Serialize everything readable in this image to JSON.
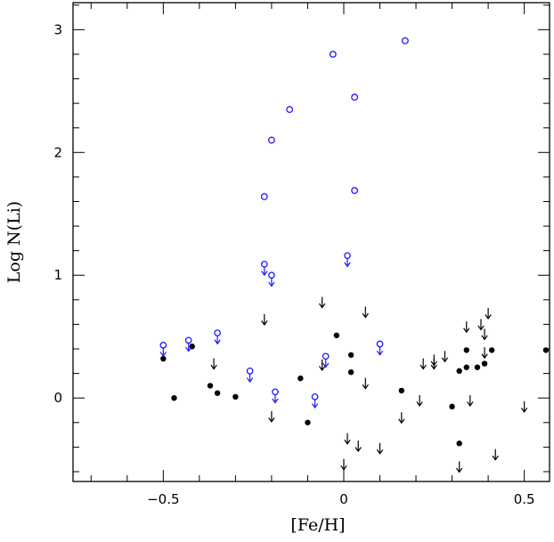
{
  "chart_data": {
    "type": "scatter",
    "title": "",
    "xlabel": "[Fe/H]",
    "ylabel": "Log N(Li)",
    "xlim": [
      -0.75,
      0.57
    ],
    "ylim": [
      -0.68,
      3.22
    ],
    "xticks_major": [
      -0.5,
      0,
      0.5
    ],
    "xticks_major_labels": [
      "−0.5",
      "0",
      "0.5"
    ],
    "xticks_minor_step": 0.1,
    "yticks_major": [
      0,
      1,
      2,
      3
    ],
    "yticks_major_labels": [
      "0",
      "1",
      "2",
      "3"
    ],
    "yticks_minor_step": 0.2,
    "grid": false,
    "legend": "none",
    "colors": {
      "black": "#000000",
      "blue": "#1a1aff"
    },
    "series": [
      {
        "marker": "filled-circle",
        "color": "#000000",
        "points": [
          [
            -0.5,
            0.32
          ],
          [
            -0.47,
            0.0
          ],
          [
            -0.42,
            0.42
          ],
          [
            -0.37,
            0.1
          ],
          [
            -0.35,
            0.04
          ],
          [
            -0.3,
            0.01
          ],
          [
            -0.12,
            0.16
          ],
          [
            -0.1,
            -0.2
          ],
          [
            -0.02,
            0.51
          ],
          [
            0.02,
            0.35
          ],
          [
            0.02,
            0.21
          ],
          [
            0.16,
            0.06
          ],
          [
            0.3,
            -0.07
          ],
          [
            0.32,
            0.22
          ],
          [
            0.32,
            -0.37
          ],
          [
            0.34,
            0.39
          ],
          [
            0.34,
            0.25
          ],
          [
            0.37,
            0.25
          ],
          [
            0.39,
            0.28
          ],
          [
            0.41,
            0.39
          ],
          [
            0.56,
            0.39
          ]
        ]
      },
      {
        "marker": "upper-limit-arrow",
        "color": "#000000",
        "points": [
          [
            -0.36,
            0.28
          ],
          [
            -0.22,
            0.64
          ],
          [
            -0.2,
            -0.15
          ],
          [
            -0.06,
            0.27
          ],
          [
            -0.06,
            0.78
          ],
          [
            0.01,
            -0.33
          ],
          [
            0.0,
            -0.54
          ],
          [
            0.04,
            -0.39
          ],
          [
            0.06,
            0.7
          ],
          [
            0.06,
            0.12
          ],
          [
            0.1,
            -0.41
          ],
          [
            0.16,
            -0.16
          ],
          [
            0.21,
            -0.02
          ],
          [
            0.22,
            0.28
          ],
          [
            0.25,
            0.31
          ],
          [
            0.25,
            0.28
          ],
          [
            0.28,
            0.34
          ],
          [
            0.34,
            0.58
          ],
          [
            0.35,
            -0.02
          ],
          [
            0.38,
            0.6
          ],
          [
            0.39,
            0.52
          ],
          [
            0.39,
            0.37
          ],
          [
            0.4,
            0.69
          ],
          [
            0.42,
            -0.46
          ],
          [
            0.32,
            -0.56
          ],
          [
            0.5,
            -0.07
          ]
        ]
      },
      {
        "marker": "open-circle",
        "color": "#1a1aff",
        "points": [
          [
            -0.03,
            2.8
          ],
          [
            0.17,
            2.91
          ],
          [
            0.03,
            2.45
          ],
          [
            -0.15,
            2.35
          ],
          [
            -0.2,
            2.1
          ],
          [
            -0.22,
            1.64
          ],
          [
            0.03,
            1.69
          ]
        ]
      },
      {
        "marker": "open-circle-upper-limit",
        "color": "#1a1aff",
        "points": [
          [
            -0.5,
            0.43
          ],
          [
            -0.43,
            0.47
          ],
          [
            -0.35,
            0.53
          ],
          [
            -0.26,
            0.22
          ],
          [
            -0.22,
            1.09
          ],
          [
            -0.2,
            1.0
          ],
          [
            -0.19,
            0.05
          ],
          [
            -0.08,
            0.01
          ],
          [
            -0.05,
            0.34
          ],
          [
            0.01,
            1.16
          ],
          [
            0.1,
            0.44
          ]
        ]
      }
    ]
  }
}
